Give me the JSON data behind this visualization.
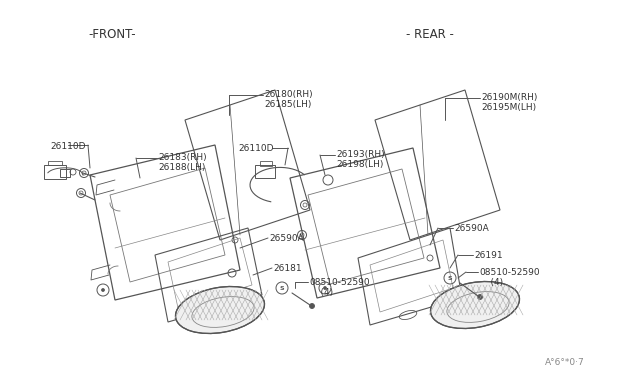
{
  "background_color": "#ffffff",
  "text_color": "#333333",
  "line_color": "#555555",
  "figsize": [
    6.4,
    3.72
  ],
  "dpi": 100,
  "front_label": "-FRONT-",
  "rear_label": "- REAR -",
  "bottom_ref": "A♯6♯*0·7",
  "font_size": 6.5,
  "title_font_size": 8.5
}
